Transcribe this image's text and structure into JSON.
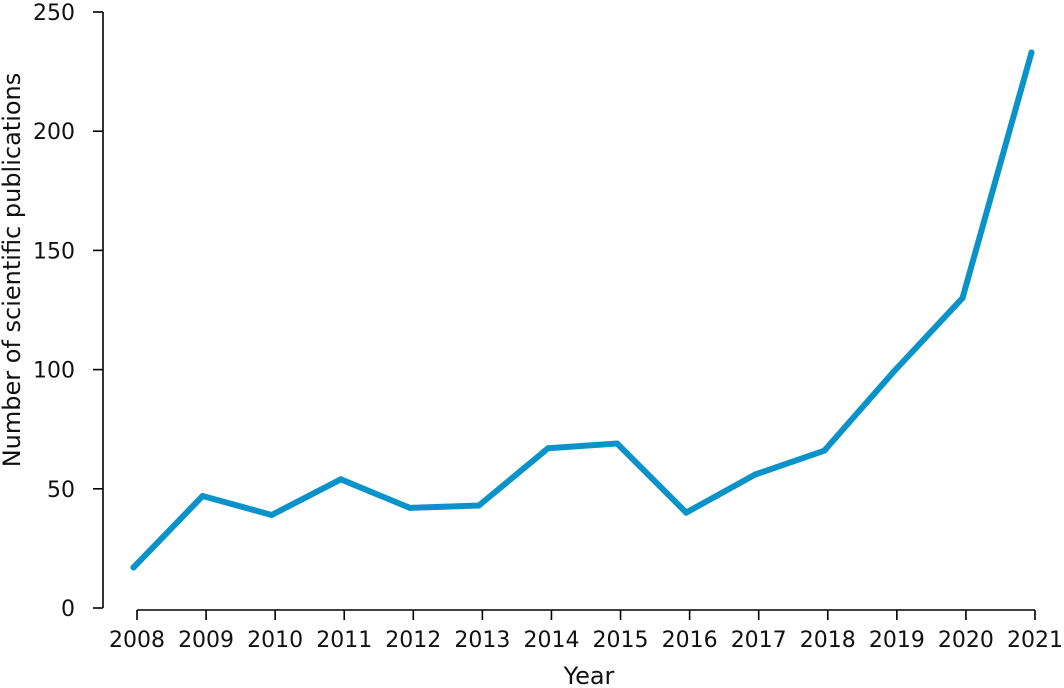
{
  "chart_data": {
    "type": "line",
    "title": "",
    "xlabel": "Year",
    "ylabel": "Number of scientific publications",
    "x_ticks": [
      "2008",
      "2009",
      "2010",
      "2011",
      "2012",
      "2013",
      "2014",
      "2015",
      "2016",
      "2017",
      "2018",
      "2019",
      "2020",
      "2021"
    ],
    "y_ticks": [
      0,
      50,
      100,
      150,
      200,
      250
    ],
    "xlim": [
      2008,
      2021
    ],
    "ylim": [
      0,
      250
    ],
    "grid": false,
    "legend": "none",
    "series": [
      {
        "color": "#0a93c9",
        "x": [
          2008,
          2009,
          2010,
          2011,
          2012,
          2013,
          2014,
          2015,
          2016,
          2017,
          2018,
          2019,
          2020,
          2021
        ],
        "values": [
          17,
          47,
          39,
          54,
          42,
          43,
          67,
          69,
          40,
          56,
          66,
          99,
          130,
          233
        ]
      }
    ]
  }
}
